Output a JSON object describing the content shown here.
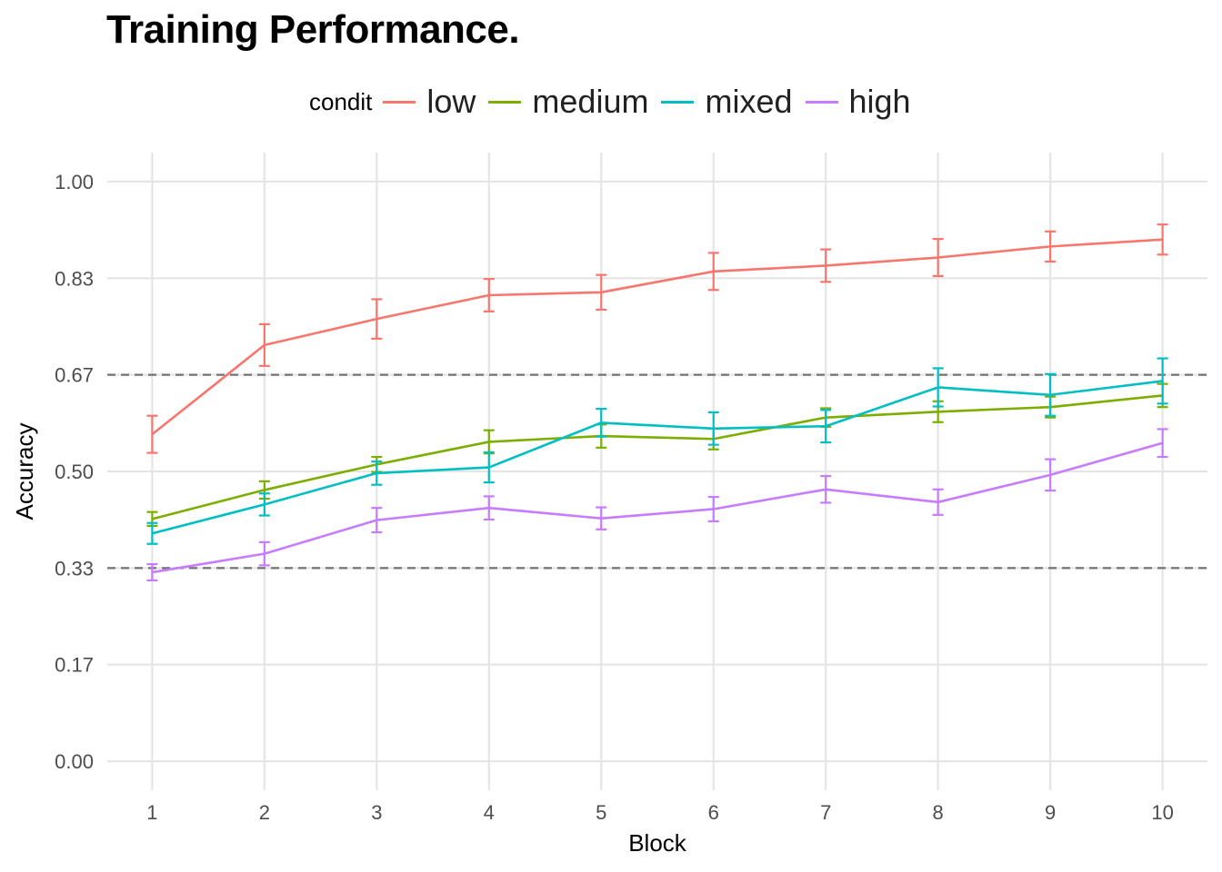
{
  "chart_data": {
    "type": "line",
    "title": "Training Performance.",
    "xlabel": "Block",
    "ylabel": "Accuracy",
    "x": [
      1,
      2,
      3,
      4,
      5,
      6,
      7,
      8,
      9,
      10
    ],
    "xlim": [
      0.6,
      10.4
    ],
    "ylim": [
      -0.05,
      1.05
    ],
    "yticks": [
      0.0,
      0.1667,
      0.3333,
      0.5,
      0.6667,
      0.8333,
      1.0
    ],
    "ytick_labels": [
      "0.00",
      "0.17",
      "0.33",
      "0.50",
      "0.67",
      "0.83",
      "1.00"
    ],
    "xtick_labels": [
      "1",
      "2",
      "3",
      "4",
      "5",
      "6",
      "7",
      "8",
      "9",
      "10"
    ],
    "reference_lines": [
      0.3333,
      0.6667
    ],
    "grid": true,
    "legend": {
      "title": "condit",
      "placement": "top"
    },
    "series": [
      {
        "name": "low",
        "color": "#F8766D",
        "values": [
          0.564,
          0.718,
          0.763,
          0.804,
          0.809,
          0.845,
          0.855,
          0.869,
          0.888,
          0.9
        ],
        "err": [
          0.032,
          0.036,
          0.034,
          0.028,
          0.03,
          0.032,
          0.028,
          0.032,
          0.026,
          0.026
        ]
      },
      {
        "name": "medium",
        "color": "#7CAE00",
        "values": [
          0.418,
          0.468,
          0.512,
          0.551,
          0.561,
          0.556,
          0.593,
          0.603,
          0.611,
          0.631
        ],
        "err": [
          0.012,
          0.015,
          0.013,
          0.02,
          0.02,
          0.018,
          0.016,
          0.018,
          0.018,
          0.02
        ]
      },
      {
        "name": "mixed",
        "color": "#00BFC4",
        "values": [
          0.393,
          0.443,
          0.497,
          0.507,
          0.584,
          0.574,
          0.578,
          0.645,
          0.632,
          0.656
        ],
        "err": [
          0.018,
          0.019,
          0.02,
          0.026,
          0.024,
          0.028,
          0.028,
          0.033,
          0.036,
          0.039
        ]
      },
      {
        "name": "high",
        "color": "#C77CFF",
        "values": [
          0.326,
          0.358,
          0.416,
          0.437,
          0.419,
          0.435,
          0.469,
          0.447,
          0.494,
          0.549
        ],
        "err": [
          0.014,
          0.02,
          0.021,
          0.02,
          0.019,
          0.021,
          0.023,
          0.022,
          0.027,
          0.024
        ]
      }
    ]
  }
}
